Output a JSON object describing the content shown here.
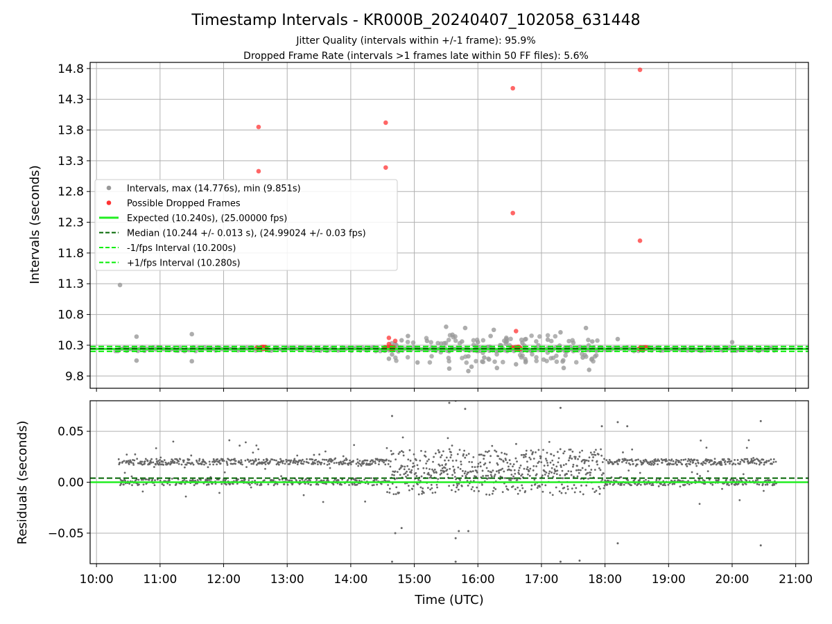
{
  "title": "Timestamp Intervals - KR000B_20240407_102058_631448",
  "subtitle_1": "Jitter Quality (intervals within +/-1 frame): 95.9%",
  "subtitle_2": "Dropped Frame Rate (intervals >1 frames late within 50 FF files): 5.6%",
  "colors": {
    "intervals": "#999999",
    "dropped": "#ff3333",
    "expected": "#22ee22",
    "median": "#006400",
    "fps_band": "#00ee00",
    "residuals": "#666666",
    "grid": "#b0b0b0"
  },
  "chart_data": [
    {
      "type": "scatter",
      "xlabel": "",
      "ylabel": "Intervals (seconds)",
      "xlim_hours": [
        9.9,
        21.2
      ],
      "ylim": [
        9.6,
        14.9
      ],
      "y_ticks": [
        9.8,
        10.3,
        10.8,
        11.3,
        11.8,
        12.3,
        12.8,
        13.3,
        13.8,
        14.3,
        14.8
      ],
      "y_tick_labels": [
        "9.8",
        "10.3",
        "10.8",
        "11.3",
        "11.8",
        "12.3",
        "12.8",
        "13.3",
        "13.8",
        "14.3",
        "14.8"
      ],
      "grid": true,
      "legend_position": "center-left",
      "legend": [
        "Intervals, max (14.776s), min (9.851s)",
        "Possible Dropped Frames",
        "Expected (10.240s), (25.00000 fps)",
        "Median (10.244 +/- 0.013 s), (24.99024 +/- 0.03 fps)",
        "-1/fps Interval (10.200s)",
        "+1/fps Interval (10.280s)"
      ],
      "lines": {
        "expected": 10.24,
        "median": 10.244,
        "minus_1_fps": 10.2,
        "plus_1_fps": 10.28
      },
      "series_intervals_outliers": [
        [
          10.37,
          11.28
        ],
        [
          10.63,
          10.44
        ],
        [
          10.63,
          10.05
        ],
        [
          11.5,
          10.48
        ],
        [
          11.5,
          10.04
        ],
        [
          14.6,
          10.08
        ],
        [
          14.65,
          10.15
        ],
        [
          14.7,
          10.32
        ],
        [
          14.75,
          10.2
        ],
        [
          14.8,
          10.38
        ],
        [
          14.9,
          10.45
        ],
        [
          15.05,
          10.02
        ],
        [
          15.2,
          10.37
        ],
        [
          15.5,
          10.6
        ],
        [
          15.55,
          9.92
        ],
        [
          15.6,
          10.47
        ],
        [
          15.75,
          10.36
        ],
        [
          15.8,
          10.58
        ],
        [
          15.85,
          9.88
        ],
        [
          15.85,
          10.12
        ],
        [
          15.9,
          9.95
        ],
        [
          16.0,
          10.35
        ],
        [
          16.1,
          10.1
        ],
        [
          16.2,
          10.45
        ],
        [
          16.25,
          10.55
        ],
        [
          16.3,
          9.93
        ],
        [
          16.35,
          10.3
        ],
        [
          16.45,
          10.4
        ],
        [
          16.6,
          9.99
        ],
        [
          16.7,
          10.34
        ],
        [
          17.1,
          10.39
        ],
        [
          17.3,
          10.51
        ],
        [
          17.35,
          9.93
        ],
        [
          17.4,
          10.2
        ],
        [
          17.65,
          10.1
        ],
        [
          17.7,
          10.58
        ],
        [
          17.75,
          9.9
        ],
        [
          17.8,
          10.36
        ],
        [
          18.2,
          10.4
        ],
        [
          20.0,
          10.35
        ]
      ],
      "series_dropped_frames": [
        [
          12.55,
          13.85
        ],
        [
          12.55,
          13.13
        ],
        [
          14.55,
          13.92
        ],
        [
          14.55,
          13.19
        ],
        [
          16.55,
          14.48
        ],
        [
          16.55,
          12.45
        ],
        [
          18.55,
          14.78
        ],
        [
          18.55,
          12.0
        ],
        [
          14.6,
          10.42
        ],
        [
          14.7,
          10.37
        ],
        [
          14.6,
          10.32
        ],
        [
          16.6,
          10.53
        ]
      ],
      "dropped_clusters_hours": [
        12.6,
        14.6,
        16.6,
        18.6
      ]
    },
    {
      "type": "scatter",
      "xlabel": "Time (UTC)",
      "ylabel": "Residuals (seconds)",
      "xlim_hours": [
        9.9,
        21.2
      ],
      "ylim": [
        -0.08,
        0.08
      ],
      "y_ticks": [
        -0.05,
        0.0,
        0.05
      ],
      "y_tick_labels": [
        "−0.05",
        "0.00",
        "0.05"
      ],
      "x_ticks_hours": [
        10,
        11,
        12,
        13,
        14,
        15,
        16,
        17,
        18,
        19,
        20,
        21
      ],
      "x_tick_labels": [
        "10:00",
        "11:00",
        "12:00",
        "13:00",
        "14:00",
        "15:00",
        "16:00",
        "17:00",
        "18:00",
        "19:00",
        "20:00",
        "21:00"
      ],
      "grid": true,
      "lines": {
        "zero": 0.0,
        "median_offset": 0.004
      },
      "residual_bands": [
        0.02,
        0.0
      ],
      "residual_spread": 0.02,
      "residual_outliers": [
        [
          14.65,
          0.065
        ],
        [
          15.55,
          0.078
        ],
        [
          15.65,
          0.08
        ],
        [
          15.8,
          0.072
        ],
        [
          17.3,
          0.073
        ],
        [
          17.95,
          0.055
        ],
        [
          18.2,
          0.059
        ],
        [
          18.35,
          0.055
        ],
        [
          20.45,
          0.06
        ],
        [
          14.7,
          -0.05
        ],
        [
          14.8,
          -0.045
        ],
        [
          14.65,
          -0.078
        ],
        [
          15.65,
          -0.055
        ],
        [
          15.7,
          -0.048
        ],
        [
          15.85,
          -0.048
        ],
        [
          15.65,
          -0.078
        ],
        [
          17.3,
          -0.078
        ],
        [
          17.6,
          -0.077
        ],
        [
          18.2,
          -0.06
        ],
        [
          20.45,
          -0.062
        ]
      ]
    }
  ]
}
